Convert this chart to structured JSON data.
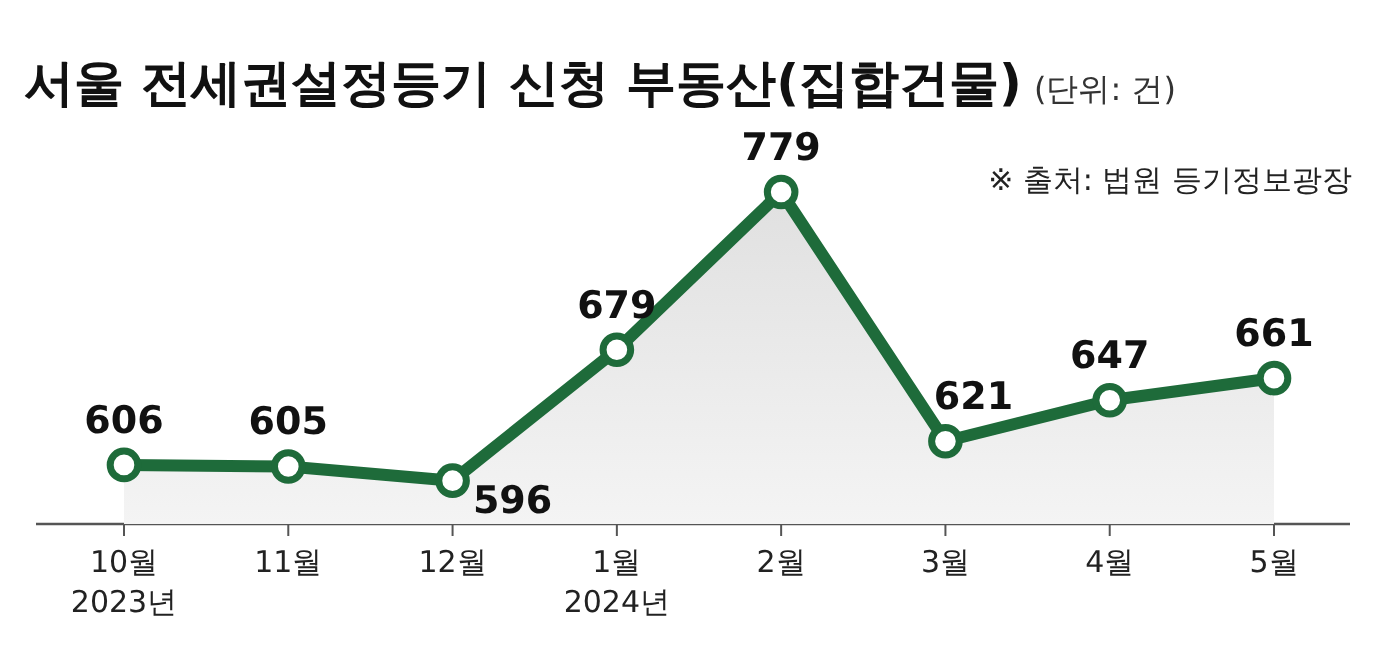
{
  "chart_data": {
    "type": "area",
    "title": "서울 전세권설정등기 신청 부동산(집합건물)",
    "subtitle": "(단위: 건)",
    "annotations": [
      "※ 출처: 법원 등기정보광장"
    ],
    "categories": [
      "10월\n2023년",
      "11월",
      "12월",
      "1월\n2024년",
      "2월",
      "3월",
      "4월",
      "5월"
    ],
    "series": [
      {
        "color": "#1e6b3a",
        "values": [
          606,
          605,
          596,
          679,
          779,
          621,
          647,
          661
        ]
      }
    ],
    "data_labels": true,
    "marker": "circle"
  }
}
